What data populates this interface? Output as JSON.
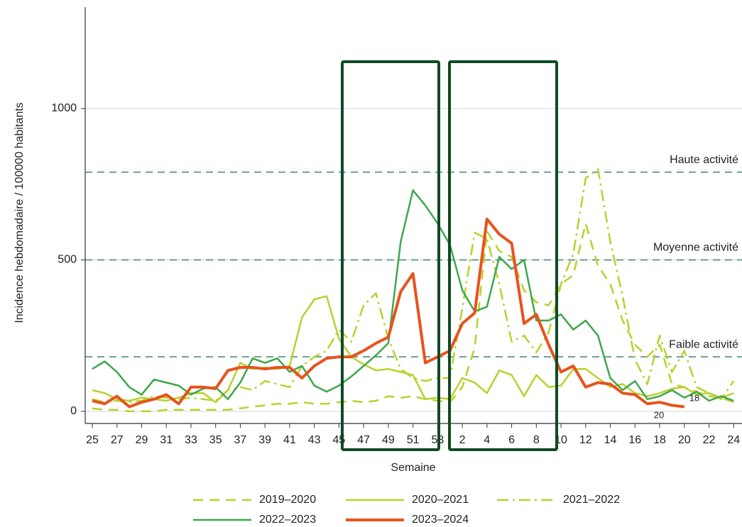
{
  "chart_data": {
    "type": "line",
    "x_label": "Semaine",
    "y_label": "Incidence hebdomadaire / 100000 habitants",
    "categories": [
      "25",
      null,
      "27",
      null,
      "29",
      null,
      "31",
      null,
      "33",
      null,
      "35",
      null,
      "37",
      null,
      "39",
      null,
      "41",
      null,
      "43",
      null,
      "45",
      null,
      "47",
      null,
      "49",
      null,
      "51",
      null,
      "53",
      null,
      "2",
      null,
      "4",
      null,
      "6",
      null,
      "8",
      null,
      "10",
      null,
      "12",
      null,
      "14",
      null,
      "16",
      null,
      "18",
      null,
      "20",
      null,
      "22",
      null,
      "24"
    ],
    "ylim": [
      -40,
      1335
    ],
    "yticks": [
      0,
      500,
      1000
    ],
    "grid": true,
    "thresholds": [
      {
        "value": 790,
        "label": "Haute activité"
      },
      {
        "value": 500,
        "label": "Moyenne activité"
      },
      {
        "value": 180,
        "label": "Faible activité"
      }
    ],
    "annotations": [
      "18",
      "20"
    ],
    "series": [
      {
        "name": "2019–2020",
        "color": "#b9d12c",
        "dash": "dashed",
        "width": 2.5,
        "values": [
          10,
          5,
          5,
          0,
          0,
          0,
          5,
          5,
          5,
          5,
          5,
          5,
          10,
          15,
          20,
          25,
          25,
          30,
          25,
          25,
          30,
          35,
          30,
          35,
          50,
          45,
          50,
          40,
          35,
          30,
          80,
          210,
          595,
          530,
          510,
          400,
          360,
          350,
          420,
          450,
          620,
          480,
          420,
          300,
          220,
          180,
          220,
          90,
          80,
          65,
          50,
          45,
          30
        ]
      },
      {
        "name": "2020–2021",
        "color": "#b9d12c",
        "dash": "solid",
        "width": 2.5,
        "values": [
          70,
          60,
          40,
          35,
          45,
          40,
          35,
          45,
          60,
          60,
          30,
          70,
          160,
          140,
          145,
          140,
          150,
          310,
          370,
          380,
          240,
          180,
          155,
          135,
          140,
          130,
          120,
          40,
          45,
          40,
          110,
          95,
          60,
          135,
          120,
          50,
          120,
          80,
          85,
          140,
          140,
          110,
          80,
          90,
          60,
          50,
          60,
          75,
          80,
          55,
          60,
          45,
          60
        ]
      },
      {
        "name": "2021–2022",
        "color": "#b9d12c",
        "dash": "dashdot",
        "width": 2.5,
        "values": [
          40,
          30,
          35,
          30,
          35,
          50,
          45,
          40,
          45,
          40,
          35,
          70,
          80,
          70,
          100,
          90,
          80,
          150,
          180,
          200,
          270,
          230,
          350,
          390,
          240,
          140,
          110,
          100,
          110,
          110,
          340,
          590,
          570,
          420,
          230,
          250,
          195,
          260,
          420,
          520,
          770,
          800,
          560,
          380,
          170,
          90,
          250,
          130,
          200,
          80,
          60,
          40,
          100
        ]
      },
      {
        "name": "2022–2023",
        "color": "#3ea84a",
        "dash": "solid",
        "width": 2.5,
        "values": [
          140,
          165,
          130,
          80,
          55,
          105,
          95,
          85,
          55,
          75,
          80,
          40,
          95,
          175,
          160,
          175,
          130,
          150,
          85,
          65,
          85,
          115,
          150,
          185,
          225,
          560,
          730,
          680,
          620,
          550,
          400,
          330,
          345,
          510,
          470,
          500,
          300,
          300,
          320,
          270,
          300,
          250,
          110,
          70,
          100,
          40,
          50,
          70,
          45,
          65,
          35,
          50,
          35
        ]
      },
      {
        "name": "2023–2024",
        "color": "#e8521d",
        "dash": "solid",
        "width": 4,
        "values": [
          35,
          25,
          50,
          15,
          30,
          40,
          55,
          25,
          80,
          80,
          75,
          135,
          145,
          145,
          140,
          145,
          145,
          110,
          150,
          175,
          180,
          180,
          200,
          225,
          245,
          395,
          455,
          160,
          180,
          200,
          290,
          325,
          635,
          585,
          555,
          290,
          320,
          220,
          130,
          150,
          80,
          95,
          90,
          60,
          55,
          25,
          30,
          20,
          15,
          null,
          null,
          null,
          null
        ]
      }
    ]
  }
}
